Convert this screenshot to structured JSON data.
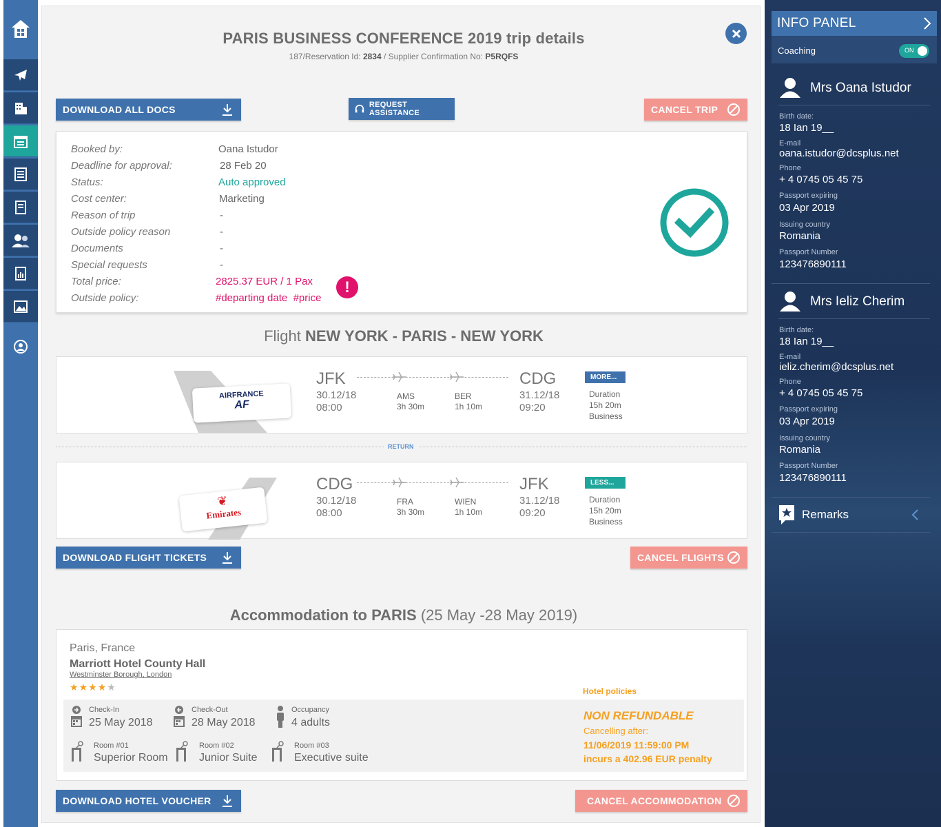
{
  "sidebar": {
    "icons": [
      "home-icon",
      "plane-icon",
      "hotel-icon",
      "trip-calendar-icon",
      "document-icon",
      "report-icon",
      "users-icon",
      "chart-icon",
      "gallery-icon",
      "profile-icon"
    ]
  },
  "trip": {
    "title": "PARIS BUSINESS CONFERENCE 2019 trip details",
    "sub_prefix": "187/Reservation Id:",
    "reservation_id": "2834",
    "sub_mid": "/ Supplier Confirmation No:",
    "confirmation": "P5RQFS"
  },
  "buttons": {
    "download_all": "DOWNLOAD ALL DOCS",
    "request_assistance": "REQUEST ASSISTANCE",
    "cancel_trip": "CANCEL TRIP",
    "download_tickets": "DOWNLOAD FLIGHT TICKETS",
    "cancel_flights": "CANCEL FLIGHTS",
    "download_voucher": "DOWNLOAD HOTEL VOUCHER",
    "cancel_accommodation": "CANCEL ACCOMMODATION"
  },
  "details": [
    {
      "label": "Booked by:",
      "value": "Oana Istudor"
    },
    {
      "label": "Deadline for approval:",
      "value": "28 Feb 20"
    },
    {
      "label": "Status:",
      "value": "Auto approved"
    },
    {
      "label": "Cost center:",
      "value": "Marketing"
    },
    {
      "label": "Reason of trip",
      "value": "-"
    },
    {
      "label": "Outside policy reason",
      "value": "-"
    },
    {
      "label": "Documents",
      "value": "-"
    },
    {
      "label": "Special requests",
      "value": "-"
    },
    {
      "label": "Total price:",
      "value": "2825.37 EUR / 1 Pax"
    },
    {
      "label": "Outside policy:",
      "value": "#departing date  #price"
    }
  ],
  "colors": {
    "blue": "#3f72ad",
    "teal": "#1fa69c",
    "pink": "#e0126b",
    "red": "#f3968f",
    "orange": "#f5a020"
  },
  "flight": {
    "title_prefix": "Flight",
    "title_route": "NEW YORK - PARIS - NEW YORK",
    "return_label": "RETURN",
    "outbound": {
      "airline_line1": "AIRFRANCE",
      "airline_line2": "AF",
      "from": "JFK",
      "dep_date": "30.12/18",
      "dep_time": "08:00",
      "stop1": "AMS",
      "stop1_time": "3h 30m",
      "stop2": "BER",
      "stop2_time": "1h 10m",
      "to": "CDG",
      "arr_date": "31.12/18",
      "arr_time": "09:20",
      "toggle": "MORE...",
      "duration_label": "Duration",
      "duration": "15h 20m",
      "class": "Business"
    },
    "inbound": {
      "airline": "Emirates",
      "from": "CDG",
      "dep_date": "30.12/18",
      "dep_time": "08:00",
      "stop1": "FRA",
      "stop1_time": "3h 30m",
      "stop2": "WIEN",
      "stop2_time": "1h 10m",
      "to": "JFK",
      "arr_date": "31.12/18",
      "arr_time": "09:20",
      "toggle": "LESS...",
      "duration_label": "Duration",
      "duration": "15h 20m",
      "class": "Business"
    }
  },
  "accommodation": {
    "title_prefix": "Accommodation to PARIS",
    "title_dates": "(25 May -28 May 2019)",
    "location": "Paris, France",
    "hotel": "Marriott Hotel County Hall",
    "address": "Westminster Borough, London",
    "stars": 4,
    "policies_label": "Hotel policies",
    "checkin_label": "Check-In",
    "checkin": "25 May 2018",
    "checkout_label": "Check-Out",
    "checkout": "28 May 2018",
    "occupancy_label": "Occupancy",
    "occupancy": "4 adults",
    "rooms": [
      {
        "label": "Room #01",
        "type": "Superior Room"
      },
      {
        "label": "Room #02",
        "type": "Junior Suite"
      },
      {
        "label": "Room #03",
        "type": "Executive suite"
      }
    ],
    "non_refundable": "NON REFUNDABLE",
    "cancel_after_label": "Cancelling after:",
    "cancel_after": "11/06/2019 11:59:00 PM",
    "penalty": "incurs a 402.96 EUR penalty"
  },
  "info_panel": {
    "title": "INFO PANEL",
    "coaching_label": "Coaching",
    "toggle_label": "ON",
    "passengers": [
      {
        "name": "Mrs Oana Istudor",
        "birth_label": "Birth date:",
        "birth": "18 Ian 19__",
        "email_label": "E-mail",
        "email": "oana.istudor@dcsplus.net",
        "phone_label": "Phone",
        "phone": "+ 4 0745 05 45 75",
        "passport_exp_label": "Passport expiring",
        "passport_exp": "03 Apr 2019",
        "country_label": "Issuing country",
        "country": "Romania",
        "passport_no_label": "Passport Number",
        "passport_no": "123476890111"
      },
      {
        "name": "Mrs Ieliz Cherim",
        "birth_label": "Birth date:",
        "birth": "18 Ian 19__",
        "email_label": "E-mail",
        "email": "ieliz.cherim@dcsplus.net",
        "phone_label": "Phone",
        "phone": "+ 4 0745 05 45 75",
        "passport_exp_label": "Passport expiring",
        "passport_exp": "03 Apr 2019",
        "country_label": "Issuing country",
        "country": "Romania",
        "passport_no_label": "Passport Number",
        "passport_no": "123476890111"
      }
    ],
    "remarks": "Remarks"
  }
}
